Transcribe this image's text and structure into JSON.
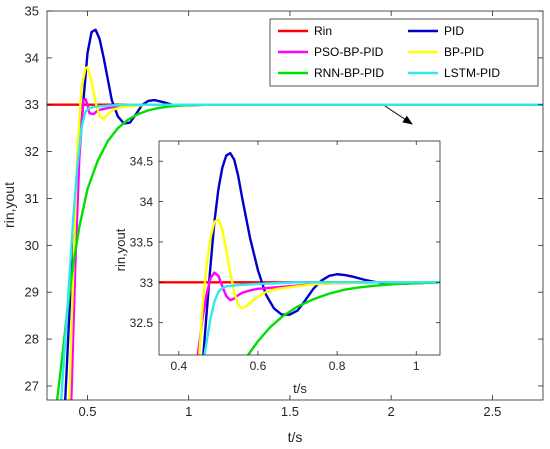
{
  "chart_data": [
    {
      "type": "line",
      "panel": "main",
      "xlabel": "t/s",
      "ylabel": "rin,yout",
      "xlim": [
        0.3,
        2.75
      ],
      "ylim": [
        26.7,
        35
      ],
      "xticks": [
        0.5,
        1,
        1.5,
        2,
        2.5
      ],
      "xtick_labels": [
        "0.5",
        "1",
        "1.5",
        "2",
        "2.5"
      ],
      "yticks": [
        27,
        28,
        29,
        30,
        31,
        32,
        33,
        34,
        35
      ],
      "ytick_labels": [
        "27",
        "28",
        "29",
        "30",
        "31",
        "32",
        "33",
        "34",
        "35"
      ],
      "grid": false,
      "legend": {
        "placement": "top-right",
        "columns": 2,
        "entries": [
          "Rin",
          "PID",
          "PSO-BP-PID",
          "BP-PID",
          "RNN-BP-PID",
          "LSTM-PID"
        ]
      },
      "series": [
        {
          "name": "Rin",
          "color": "#ff0000",
          "x": [
            0.3,
            2.75
          ],
          "y": [
            33,
            33
          ]
        },
        {
          "name": "PID",
          "color": "#0000cd",
          "x": [
            0.39,
            0.41,
            0.44,
            0.47,
            0.5,
            0.52,
            0.54,
            0.56,
            0.58,
            0.6,
            0.62,
            0.65,
            0.68,
            0.71,
            0.74,
            0.77,
            0.8,
            0.83,
            0.87,
            0.92,
            1.0,
            1.1,
            2.75
          ],
          "y": [
            26.7,
            28.5,
            30.8,
            32.6,
            34.1,
            34.55,
            34.6,
            34.4,
            34.0,
            33.55,
            33.1,
            32.75,
            32.6,
            32.62,
            32.8,
            33.0,
            33.08,
            33.1,
            33.06,
            33.0,
            32.99,
            33.0,
            33.0
          ]
        },
        {
          "name": "PSO-BP-PID",
          "color": "#ff00ff",
          "x": [
            0.42,
            0.44,
            0.46,
            0.48,
            0.49,
            0.5,
            0.51,
            0.53,
            0.55,
            0.57,
            0.6,
            0.65,
            0.7,
            0.8,
            2.75
          ],
          "y": [
            26.7,
            29.6,
            31.9,
            33.1,
            33.12,
            33.0,
            32.82,
            32.8,
            32.88,
            32.9,
            32.93,
            32.97,
            32.99,
            33.0,
            33.0
          ]
        },
        {
          "name": "BP-PID",
          "color": "#ffff00",
          "x": [
            0.41,
            0.43,
            0.45,
            0.47,
            0.49,
            0.5,
            0.52,
            0.54,
            0.56,
            0.58,
            0.6,
            0.63,
            0.67,
            0.72,
            0.8,
            2.75
          ],
          "y": [
            26.7,
            29.5,
            32.0,
            33.35,
            33.78,
            33.8,
            33.5,
            33.05,
            32.75,
            32.7,
            32.8,
            32.9,
            32.95,
            32.97,
            33.0,
            33.0
          ]
        },
        {
          "name": "RNN-BP-PID",
          "color": "#00e000",
          "x": [
            0.35,
            0.38,
            0.4,
            0.43,
            0.46,
            0.5,
            0.55,
            0.6,
            0.65,
            0.7,
            0.75,
            0.8,
            0.85,
            0.9,
            0.95,
            1.0,
            1.1,
            2.75
          ],
          "y": [
            26.7,
            27.8,
            28.6,
            29.6,
            30.4,
            31.2,
            31.8,
            32.22,
            32.5,
            32.68,
            32.8,
            32.88,
            32.93,
            32.96,
            32.98,
            32.99,
            33.0,
            33.0
          ]
        },
        {
          "name": "LSTM-PID",
          "color": "#33e6f0",
          "x": [
            0.37,
            0.4,
            0.43,
            0.45,
            0.47,
            0.49,
            0.51,
            0.54,
            0.57,
            0.6,
            0.65,
            0.7,
            0.8,
            2.75
          ],
          "y": [
            26.7,
            28.6,
            30.6,
            31.7,
            32.5,
            32.85,
            32.93,
            32.96,
            32.97,
            32.98,
            32.99,
            33.0,
            33.0,
            33.0
          ]
        }
      ]
    },
    {
      "type": "line",
      "panel": "inset",
      "xlabel": "t/s",
      "ylabel": "rin,yout",
      "xlim": [
        0.35,
        1.06
      ],
      "ylim": [
        32.1,
        34.75
      ],
      "xticks": [
        0.4,
        0.6,
        0.8,
        1
      ],
      "xtick_labels": [
        "0.4",
        "0.6",
        "0.8",
        "1"
      ],
      "yticks": [
        32.5,
        33,
        33.5,
        34,
        34.5
      ],
      "ytick_labels": [
        "32.5",
        "33",
        "33.5",
        "34",
        "34.5"
      ],
      "grid": false,
      "series": [
        {
          "name": "Rin",
          "color": "#ff0000",
          "x": [
            0.35,
            1.06
          ],
          "y": [
            33,
            33
          ]
        },
        {
          "name": "PID",
          "color": "#0000cd",
          "x": [
            0.462,
            0.47,
            0.48,
            0.49,
            0.5,
            0.51,
            0.52,
            0.53,
            0.54,
            0.55,
            0.56,
            0.57,
            0.58,
            0.6,
            0.62,
            0.64,
            0.66,
            0.68,
            0.7,
            0.72,
            0.74,
            0.76,
            0.78,
            0.8,
            0.82,
            0.84,
            0.87,
            0.9,
            0.95,
            1.0,
            1.06
          ],
          "y": [
            32.1,
            32.6,
            33.2,
            33.75,
            34.15,
            34.42,
            34.57,
            34.6,
            34.52,
            34.32,
            34.05,
            33.8,
            33.55,
            33.15,
            32.85,
            32.68,
            32.6,
            32.6,
            32.65,
            32.78,
            32.92,
            33.02,
            33.08,
            33.1,
            33.09,
            33.07,
            33.03,
            33.0,
            32.98,
            32.99,
            33.0
          ]
        },
        {
          "name": "PSO-BP-PID",
          "color": "#ff00ff",
          "x": [
            0.448,
            0.46,
            0.47,
            0.48,
            0.49,
            0.5,
            0.51,
            0.52,
            0.53,
            0.54,
            0.55,
            0.56,
            0.58,
            0.6,
            0.65,
            0.7,
            0.75,
            0.8,
            0.9,
            1.06
          ],
          "y": [
            32.1,
            32.55,
            32.85,
            33.05,
            33.12,
            33.08,
            32.95,
            32.83,
            32.78,
            32.8,
            32.84,
            32.87,
            32.9,
            32.92,
            32.94,
            32.96,
            32.98,
            32.99,
            33.0,
            33.0
          ]
        },
        {
          "name": "BP-PID",
          "color": "#ffff00",
          "x": [
            0.452,
            0.46,
            0.47,
            0.48,
            0.49,
            0.5,
            0.51,
            0.52,
            0.53,
            0.54,
            0.55,
            0.56,
            0.57,
            0.58,
            0.6,
            0.62,
            0.65,
            0.7,
            0.75,
            0.8,
            0.9,
            1.06
          ],
          "y": [
            32.1,
            32.7,
            33.2,
            33.55,
            33.75,
            33.78,
            33.65,
            33.4,
            33.12,
            32.88,
            32.72,
            32.68,
            32.7,
            32.75,
            32.82,
            32.88,
            32.92,
            32.95,
            32.98,
            32.99,
            33.0,
            33.0
          ]
        },
        {
          "name": "RNN-BP-PID",
          "color": "#00e000",
          "x": [
            0.575,
            0.6,
            0.63,
            0.66,
            0.7,
            0.74,
            0.78,
            0.82,
            0.86,
            0.9,
            0.95,
            1.0,
            1.06
          ],
          "y": [
            32.1,
            32.27,
            32.44,
            32.57,
            32.7,
            32.79,
            32.86,
            32.91,
            32.94,
            32.96,
            32.98,
            32.99,
            33.0
          ]
        },
        {
          "name": "LSTM-PID",
          "color": "#33e6f0",
          "x": [
            0.465,
            0.47,
            0.48,
            0.49,
            0.5,
            0.51,
            0.52,
            0.54,
            0.56,
            0.6,
            0.65,
            0.7,
            0.8,
            1.06
          ],
          "y": [
            32.1,
            32.25,
            32.55,
            32.76,
            32.88,
            32.93,
            32.95,
            32.96,
            32.97,
            32.98,
            32.99,
            33.0,
            33.0,
            33.0
          ]
        }
      ]
    }
  ]
}
